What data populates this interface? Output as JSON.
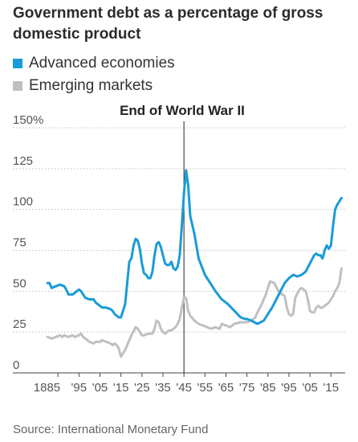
{
  "title": "Government debt as a percentage of gross domestic product",
  "source": "Source: International Monetary Fund",
  "chart_data": {
    "type": "line",
    "title": "Government debt as a percentage of gross domestic product",
    "annotation": {
      "label": "End of World War II",
      "x": 1945
    },
    "xlim": [
      1875,
      2021
    ],
    "ylim": [
      0,
      150
    ],
    "y_ticks": [
      {
        "value": 0,
        "label": "0"
      },
      {
        "value": 25,
        "label": "25"
      },
      {
        "value": 50,
        "label": "50"
      },
      {
        "value": 75,
        "label": "75"
      },
      {
        "value": 100,
        "label": "100"
      },
      {
        "value": 125,
        "label": "125"
      },
      {
        "value": 150,
        "label": "150%"
      }
    ],
    "x_ticks": [
      {
        "value": 1885,
        "label": "1885"
      },
      {
        "value": 1895,
        "label": "'95"
      },
      {
        "value": 1905,
        "label": "'05"
      },
      {
        "value": 1915,
        "label": "'15"
      },
      {
        "value": 1925,
        "label": "'25"
      },
      {
        "value": 1935,
        "label": "'35"
      },
      {
        "value": 1945,
        "label": "'45"
      },
      {
        "value": 1955,
        "label": "'55"
      },
      {
        "value": 1965,
        "label": "'65"
      },
      {
        "value": 1975,
        "label": "'75"
      },
      {
        "value": 1985,
        "label": "'85"
      },
      {
        "value": 1995,
        "label": "'95"
      },
      {
        "value": 2005,
        "label": "'05"
      },
      {
        "value": 2015,
        "label": "'15"
      }
    ],
    "grid": "horizontal",
    "legend_position": "top-left",
    "series": [
      {
        "name": "Advanced economies",
        "color": "#1a9bd7",
        "x": [
          1880,
          1881,
          1882,
          1884,
          1886,
          1888,
          1889,
          1890,
          1892,
          1893,
          1894,
          1895,
          1896,
          1897,
          1898,
          1900,
          1902,
          1903,
          1904,
          1905,
          1906,
          1908,
          1910,
          1911,
          1912,
          1913,
          1914,
          1915,
          1916,
          1917,
          1918,
          1919,
          1920,
          1921,
          1922,
          1923,
          1924,
          1925,
          1926,
          1927,
          1928,
          1929,
          1930,
          1931,
          1932,
          1933,
          1934,
          1935,
          1936,
          1937,
          1938,
          1939,
          1940,
          1941,
          1942,
          1943,
          1944,
          1945,
          1946,
          1947,
          1948,
          1950,
          1952,
          1955,
          1958,
          1960,
          1963,
          1966,
          1969,
          1972,
          1974,
          1975,
          1977,
          1980,
          1983,
          1985,
          1987,
          1989,
          1991,
          1993,
          1995,
          1997,
          1999,
          2001,
          2003,
          2005,
          2007,
          2008,
          2009,
          2010,
          2011,
          2012,
          2013,
          2014,
          2015,
          2016,
          2017,
          2018,
          2019,
          2020
        ],
        "y": [
          55,
          55,
          52,
          53,
          54,
          53,
          51,
          48,
          48,
          49,
          50,
          51,
          50,
          48,
          46,
          45,
          45,
          43,
          42,
          41,
          40,
          40,
          39,
          38,
          36,
          35,
          34,
          34,
          38,
          42,
          55,
          68,
          70,
          78,
          82,
          81,
          76,
          67,
          61,
          60,
          58,
          58,
          62,
          72,
          79,
          80,
          77,
          72,
          67,
          66,
          66,
          68,
          64,
          63,
          65,
          72,
          90,
          110,
          124,
          115,
          96,
          85,
          70,
          60,
          54,
          50,
          45,
          42,
          38,
          34,
          33,
          33,
          32,
          30,
          32,
          36,
          40,
          45,
          50,
          55,
          58,
          60,
          59,
          60,
          62,
          67,
          72,
          73,
          72,
          72,
          70,
          75,
          78,
          76,
          78,
          90,
          100,
          103,
          105,
          107
        ]
      },
      {
        "name": "Emerging markets",
        "color": "#c0c0c0",
        "x": [
          1880,
          1882,
          1884,
          1886,
          1887,
          1888,
          1890,
          1892,
          1893,
          1895,
          1896,
          1897,
          1899,
          1900,
          1902,
          1903,
          1905,
          1906,
          1908,
          1910,
          1911,
          1912,
          1913,
          1914,
          1915,
          1916,
          1917,
          1918,
          1919,
          1920,
          1922,
          1923,
          1924,
          1925,
          1926,
          1928,
          1930,
          1931,
          1932,
          1933,
          1934,
          1935,
          1936,
          1937,
          1938,
          1939,
          1940,
          1941,
          1942,
          1943,
          1944,
          1945,
          1946,
          1947,
          1948,
          1950,
          1952,
          1954,
          1956,
          1958,
          1960,
          1962,
          1963,
          1965,
          1967,
          1969,
          1972,
          1975,
          1977,
          1979,
          1980,
          1982,
          1984,
          1986,
          1988,
          1990,
          1991,
          1993,
          1994,
          1995,
          1996,
          1997,
          1998,
          2000,
          2001,
          2002,
          2003,
          2004,
          2005,
          2006,
          2007,
          2008,
          2009,
          2010,
          2011,
          2012,
          2013,
          2014,
          2015,
          2016,
          2017,
          2018,
          2019,
          2020
        ],
        "y": [
          22,
          21,
          22,
          23,
          22,
          23,
          22,
          23,
          22,
          23,
          24,
          22,
          20,
          19,
          18,
          19,
          19,
          20,
          19,
          18,
          17,
          18,
          17,
          15,
          10,
          12,
          14,
          17,
          20,
          23,
          28,
          27,
          25,
          23,
          23,
          24,
          24,
          27,
          32,
          31,
          27,
          25,
          24,
          25,
          26,
          26,
          27,
          28,
          30,
          33,
          40,
          46,
          46,
          38,
          35,
          32,
          30,
          29,
          28,
          27,
          28,
          27,
          30,
          29,
          28,
          30,
          31,
          31,
          32,
          34,
          37,
          42,
          48,
          56,
          55,
          50,
          49,
          47,
          40,
          36,
          35,
          36,
          46,
          51,
          52,
          51,
          50,
          45,
          38,
          37,
          37,
          40,
          41,
          40,
          40,
          41,
          42,
          43,
          45,
          47,
          50,
          52,
          55,
          64
        ]
      }
    ]
  }
}
